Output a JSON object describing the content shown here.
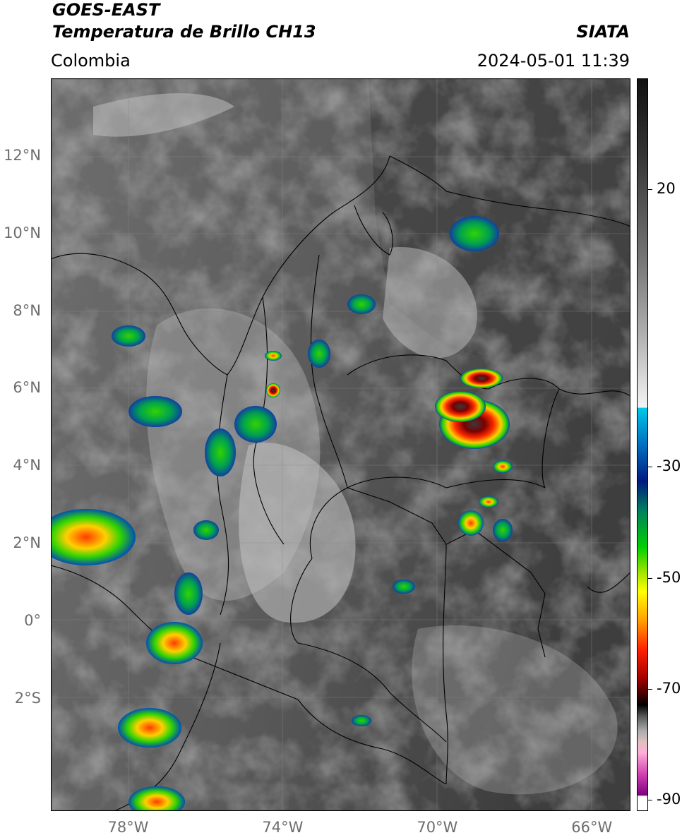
{
  "header": {
    "satellite": "GOES-EAST",
    "product": "Temperatura de Brillo CH13",
    "agency": "SIATA",
    "region": "Colombia",
    "datetime": "2024-05-01 11:39"
  },
  "map": {
    "lat_labels": [
      {
        "label": "12°N",
        "value": 12
      },
      {
        "label": "10°N",
        "value": 10
      },
      {
        "label": "8°N",
        "value": 8
      },
      {
        "label": "6°N",
        "value": 6
      },
      {
        "label": "4°N",
        "value": 4
      },
      {
        "label": "2°N",
        "value": 2
      },
      {
        "label": "0°",
        "value": 0
      },
      {
        "label": "2°S",
        "value": -2
      }
    ],
    "lon_labels": [
      {
        "label": "78°W",
        "value": -78
      },
      {
        "label": "74°W",
        "value": -74
      },
      {
        "label": "70°W",
        "value": -70
      },
      {
        "label": "66°W",
        "value": -66
      }
    ],
    "extent": {
      "lon_min": -80,
      "lon_max": -65,
      "lat_min": -4.9,
      "lat_max": 14
    }
  },
  "colorbar": {
    "ticks": [
      {
        "label": "20",
        "value": 20
      },
      {
        "label": "-30",
        "value": -30
      },
      {
        "label": "-50",
        "value": -50
      },
      {
        "label": "-70",
        "value": -70
      },
      {
        "label": "-90",
        "value": -90
      }
    ],
    "range": [
      -92,
      40
    ]
  }
}
